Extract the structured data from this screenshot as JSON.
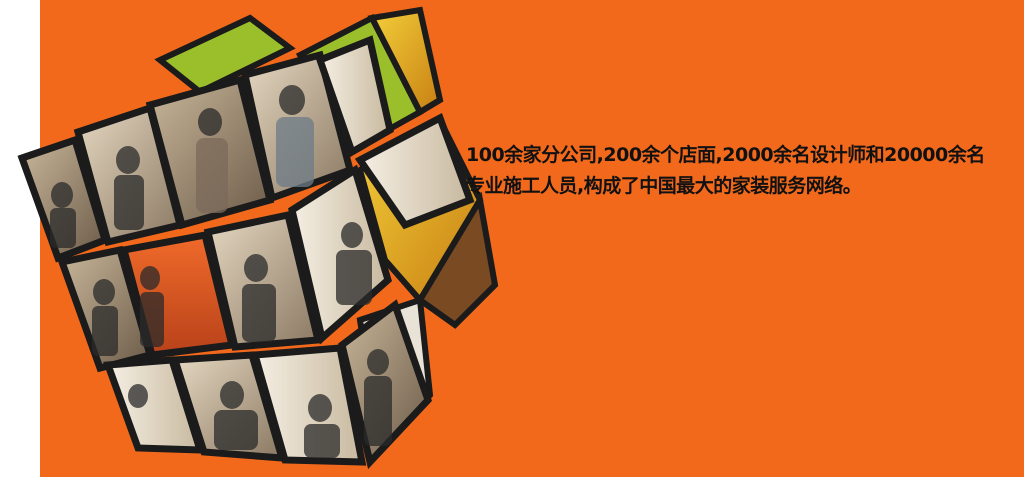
{
  "colors": {
    "background": "#f2691c",
    "page_margin": "#ffffff",
    "cube_frame": "#1b1b1b",
    "cube_highlight": "#9bbf2a",
    "text": "#111111"
  },
  "caption": {
    "line1": "100余家分公司,200余个店面,2000余名设计师和20000余名",
    "line2": "专业施工人员,构成了中国最大的家装服务网络。"
  },
  "graphic": {
    "name": "photo-cube",
    "tiles": 18
  }
}
